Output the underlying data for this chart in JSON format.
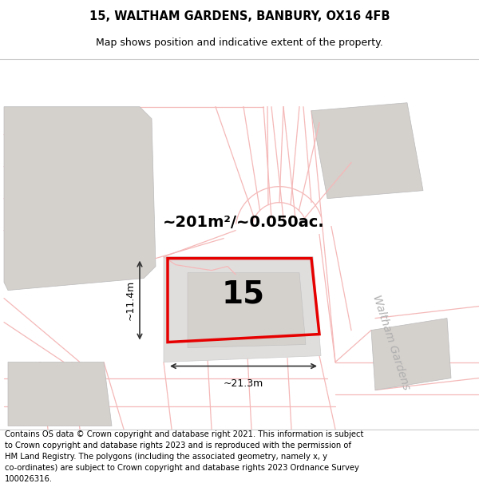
{
  "title_line1": "15, WALTHAM GARDENS, BANBURY, OX16 4FB",
  "title_line2": "Map shows position and indicative extent of the property.",
  "area_text": "~201m²/~0.050ac.",
  "number_label": "15",
  "width_label": "~21.3m",
  "height_label": "~11.4m",
  "road_label": "Waltham Gardens",
  "footer_text": "Contains OS data © Crown copyright and database right 2021. This information is subject to Crown copyright and database rights 2023 and is reproduced with the permission of HM Land Registry. The polygons (including the associated geometry, namely x, y co-ordinates) are subject to Crown copyright and database rights 2023 Ordnance Survey 100026316.",
  "bg_color": "#ffffff",
  "map_bg": "#f2f0ee",
  "road_lines_color": "#f5b8b8",
  "road_outline_color": "#d8a0a0",
  "plot_border": "#e60000",
  "building_fill": "#d4d0cc",
  "building_edge": "#bbbbbb",
  "parcel_fill": "#e0dedd",
  "title_fontsize": 10.5,
  "subtitle_fontsize": 9,
  "footer_fontsize": 7.2,
  "area_fontsize": 14,
  "number_fontsize": 28
}
